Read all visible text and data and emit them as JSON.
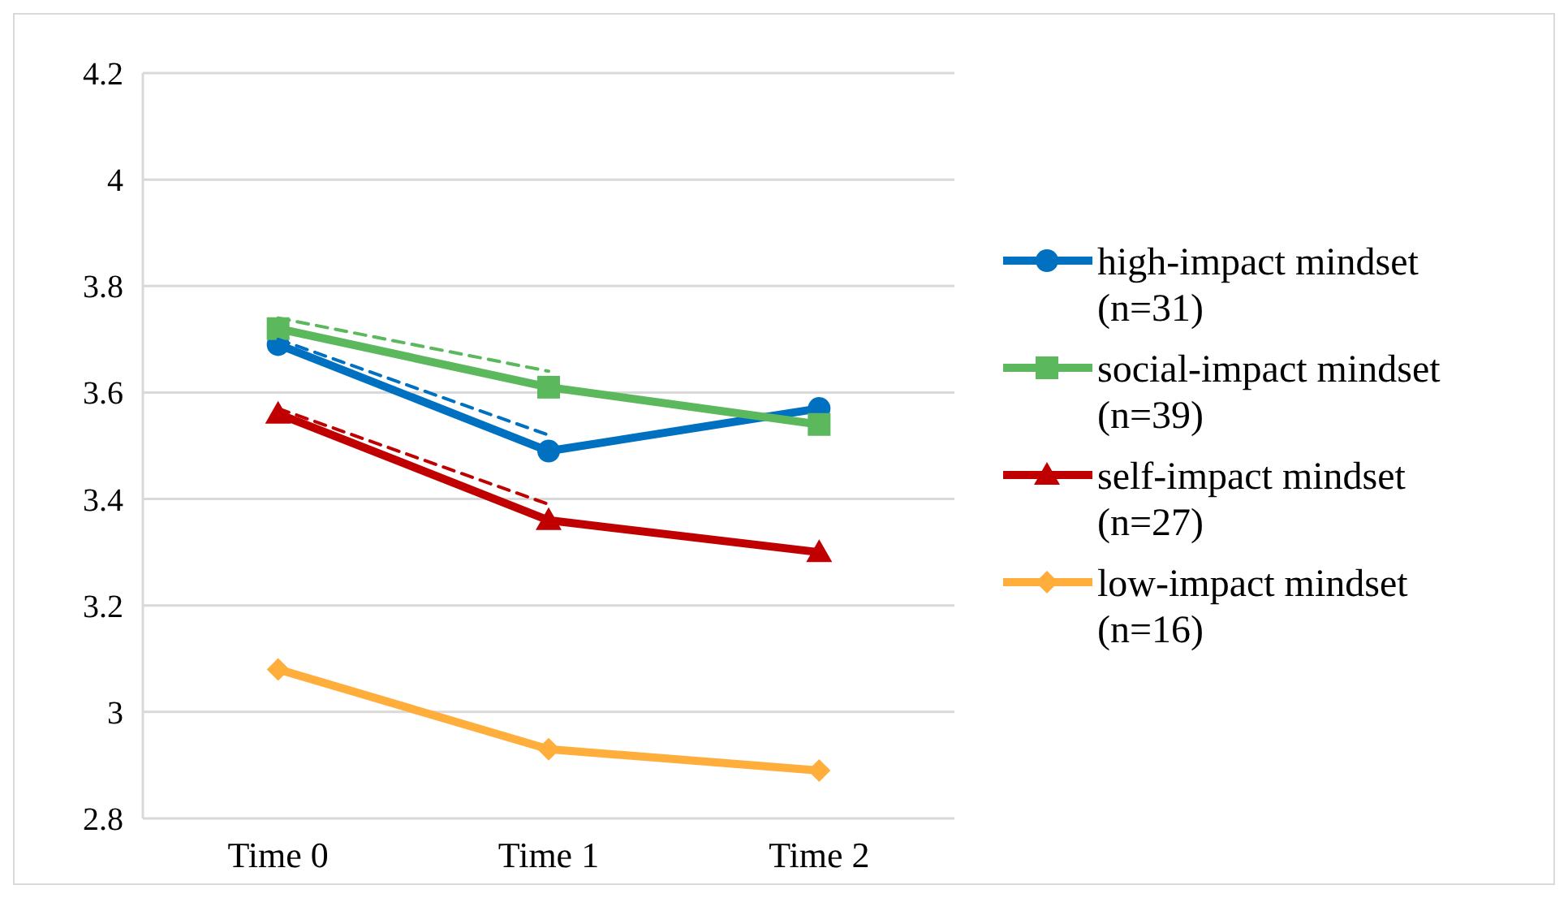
{
  "chart_data": {
    "type": "line",
    "categories": [
      "Time 0",
      "Time 1",
      "Time 2"
    ],
    "series": [
      {
        "name": "high-impact mindset\n(n=31)",
        "color": "#0070c0",
        "values": [
          3.69,
          3.49,
          3.57
        ],
        "marker": "circle"
      },
      {
        "name": "social-impact mindset\n(n=39)",
        "color": "#5cb85c",
        "values": [
          3.72,
          3.61,
          3.54
        ],
        "marker": "square"
      },
      {
        "name": "self-impact mindset\n(n=27)",
        "color": "#c00000",
        "values": [
          3.56,
          3.36,
          3.3
        ],
        "marker": "triangle"
      },
      {
        "name": "low-impact mindset\n(n=16)",
        "color": "#ffad3b",
        "values": [
          3.08,
          2.93,
          2.89
        ],
        "marker": "diamond"
      },
      {
        "color": "#0070c0",
        "values": [
          3.7,
          3.52,
          null
        ],
        "marker": "none",
        "line_style": "dashed"
      },
      {
        "color": "#5cb85c",
        "values": [
          3.74,
          3.64,
          null
        ],
        "marker": "none",
        "line_style": "dashed"
      },
      {
        "color": "#c00000",
        "values": [
          3.57,
          3.39,
          null
        ],
        "marker": "none",
        "line_style": "dashed"
      }
    ],
    "ylim": [
      2.8,
      4.2
    ],
    "yticks": [
      2.8,
      3,
      3.2,
      3.4,
      3.6,
      3.8,
      4,
      4.2
    ],
    "grid": "y",
    "legend": "right",
    "line_style": "solid"
  }
}
